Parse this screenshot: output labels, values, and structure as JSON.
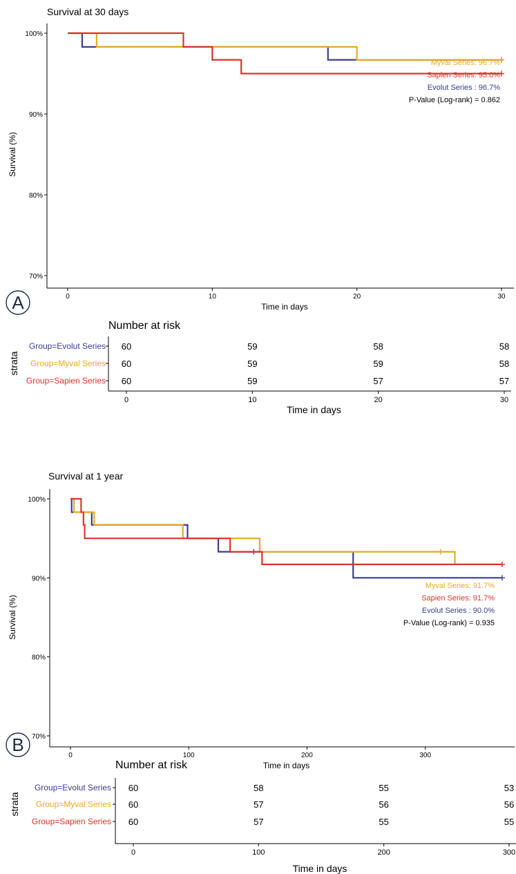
{
  "colors": {
    "evolut": "#3a3d93",
    "myval": "#e8a922",
    "sapien": "#d9342b",
    "axis": "#000000"
  },
  "chart_data": [
    {
      "type": "line",
      "panel_letter": "A",
      "title": "Survival at 30 days",
      "xlabel": "Time in days",
      "ylabel": "Survival (%)",
      "xlim": [
        0,
        30
      ],
      "ylim": [
        70,
        100
      ],
      "x_ticks": [
        0,
        10,
        20,
        30
      ],
      "y_ticks": [
        70,
        80,
        90,
        100
      ],
      "y_tick_labels": [
        "70%",
        "80%",
        "90%",
        "100%"
      ],
      "grid": false,
      "series": [
        {
          "key": "evolut",
          "points": [
            [
              0,
              100
            ],
            [
              1,
              98.3
            ],
            [
              18,
              96.7
            ],
            [
              30,
              96.7
            ]
          ],
          "censor": [
            30
          ]
        },
        {
          "key": "myval",
          "points": [
            [
              0,
              100
            ],
            [
              2,
              98.3
            ],
            [
              20,
              96.7
            ],
            [
              30,
              96.7
            ]
          ],
          "censor": [
            30
          ]
        },
        {
          "key": "sapien",
          "points": [
            [
              0,
              100
            ],
            [
              8,
              98.3
            ],
            [
              10,
              96.7
            ],
            [
              12,
              95.0
            ],
            [
              30,
              95.0
            ]
          ],
          "censor": [
            30
          ]
        }
      ],
      "annotations": [
        {
          "key": "myval",
          "text": "Myval Series: 96.7%"
        },
        {
          "key": "sapien",
          "text": "Sapien Series: 95.0%"
        },
        {
          "key": "evolut",
          "text": "Evolut Series : 96.7%"
        },
        {
          "key": "pvalue",
          "text": "P-Value (Log-rank) = 0.862"
        }
      ],
      "risk_table": {
        "title": "Number at risk",
        "ylabel": "strata",
        "xlabel": "Time in days",
        "times": [
          0,
          10,
          20,
          30
        ],
        "rows": [
          {
            "key": "evolut",
            "label": "Group=Evolut Series",
            "counts": [
              60,
              59,
              58,
              58
            ]
          },
          {
            "key": "myval",
            "label": "Group=Myval Series",
            "counts": [
              60,
              59,
              59,
              58
            ]
          },
          {
            "key": "sapien",
            "label": "Group=Sapien Series",
            "counts": [
              60,
              59,
              57,
              57
            ]
          }
        ]
      }
    },
    {
      "type": "line",
      "panel_letter": "B",
      "title": "Survival at 1 year",
      "xlabel": "Time in days",
      "ylabel": "Survival (%)",
      "xlim": [
        0,
        365
      ],
      "ylim": [
        70,
        100
      ],
      "x_ticks": [
        0,
        100,
        200,
        300
      ],
      "y_ticks": [
        70,
        80,
        90,
        100
      ],
      "y_tick_labels": [
        "70%",
        "80%",
        "90%",
        "100%"
      ],
      "grid": false,
      "series": [
        {
          "key": "evolut",
          "points": [
            [
              0,
              100
            ],
            [
              1,
              98.3
            ],
            [
              18,
              96.7
            ],
            [
              99,
              95.0
            ],
            [
              125,
              93.3
            ],
            [
              239,
              90.0
            ],
            [
              365,
              90.0
            ]
          ],
          "censor": [
            155,
            365
          ]
        },
        {
          "key": "myval",
          "points": [
            [
              0,
              100
            ],
            [
              3,
              98.3
            ],
            [
              20,
              96.7
            ],
            [
              95,
              95.0
            ],
            [
              160,
              93.3
            ],
            [
              325,
              91.7
            ],
            [
              365,
              91.7
            ]
          ],
          "censor": [
            313
          ]
        },
        {
          "key": "sapien",
          "points": [
            [
              0,
              100
            ],
            [
              9,
              98.3
            ],
            [
              11,
              96.7
            ],
            [
              12,
              95.0
            ],
            [
              135,
              93.3
            ],
            [
              162,
              91.7
            ],
            [
              365,
              91.7
            ]
          ],
          "censor": [
            365
          ]
        }
      ],
      "annotations": [
        {
          "key": "myval",
          "text": "Myval Series: 91.7%"
        },
        {
          "key": "sapien",
          "text": "Sapien Series: 91.7%"
        },
        {
          "key": "evolut",
          "text": "Evolut Series : 90.0%"
        },
        {
          "key": "pvalue",
          "text": "P-Value (Log-rank) = 0.935"
        }
      ],
      "risk_table": {
        "title": "Number at risk",
        "ylabel": "strata",
        "xlabel": "Time in days",
        "times": [
          0,
          100,
          200,
          300
        ],
        "rows": [
          {
            "key": "evolut",
            "label": "Group=Evolut Series",
            "counts": [
              60,
              58,
              55,
              53
            ]
          },
          {
            "key": "myval",
            "label": "Group=Myval Series",
            "counts": [
              60,
              57,
              56,
              56
            ]
          },
          {
            "key": "sapien",
            "label": "Group=Sapien Series",
            "counts": [
              60,
              57,
              55,
              55
            ]
          }
        ]
      }
    }
  ]
}
